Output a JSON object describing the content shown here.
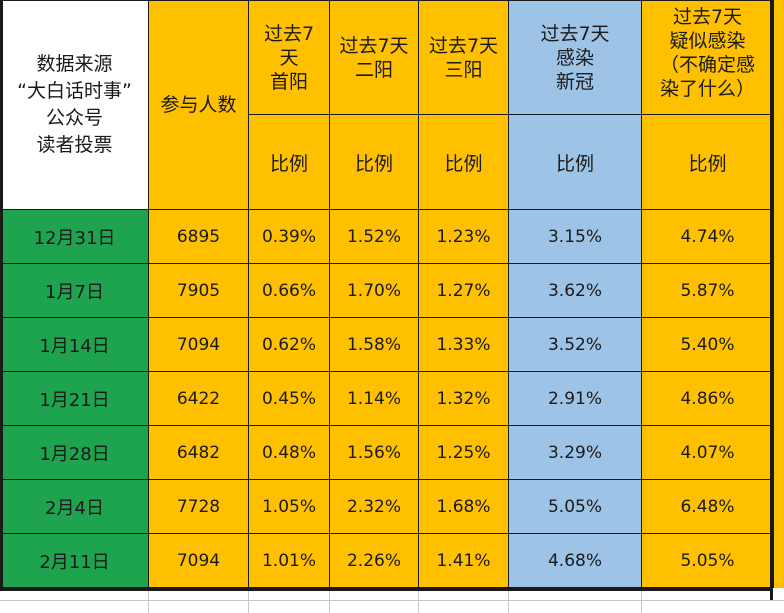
{
  "header": {
    "source_lines": [
      "数据来源",
      "“大白话时事”",
      "公众号",
      "读者投票"
    ],
    "participants": "参与人数",
    "col_first_pos": [
      "过去7",
      "天",
      "首阳"
    ],
    "col_second_pos": [
      "过去7天",
      "二阳"
    ],
    "col_third_pos": [
      "过去7天",
      "三阳"
    ],
    "col_infected": [
      "过去7天",
      "感染",
      "新冠"
    ],
    "col_suspected": [
      "过去7天",
      "疑似感染",
      "（不确定感",
      "染了什么）"
    ],
    "ratio_label": "比例"
  },
  "rows": [
    {
      "date": "12月31日",
      "participants": "6895",
      "first": "0.39%",
      "second": "1.52%",
      "third": "1.23%",
      "infected": "3.15%",
      "suspected": "4.74%"
    },
    {
      "date": "1月7日",
      "participants": "7905",
      "first": "0.66%",
      "second": "1.70%",
      "third": "1.27%",
      "infected": "3.62%",
      "suspected": "5.87%"
    },
    {
      "date": "1月14日",
      "participants": "7094",
      "first": "0.62%",
      "second": "1.58%",
      "third": "1.33%",
      "infected": "3.52%",
      "suspected": "5.40%"
    },
    {
      "date": "1月21日",
      "participants": "6422",
      "first": "0.45%",
      "second": "1.14%",
      "third": "1.32%",
      "infected": "2.91%",
      "suspected": "4.86%"
    },
    {
      "date": "1月28日",
      "participants": "6482",
      "first": "0.48%",
      "second": "1.56%",
      "third": "1.25%",
      "infected": "3.29%",
      "suspected": "4.07%"
    },
    {
      "date": "2月4日",
      "participants": "7728",
      "first": "1.05%",
      "second": "2.32%",
      "third": "1.68%",
      "infected": "5.05%",
      "suspected": "6.48%"
    },
    {
      "date": "2月11日",
      "participants": "7094",
      "first": "1.01%",
      "second": "2.26%",
      "third": "1.41%",
      "infected": "4.68%",
      "suspected": "5.05%"
    }
  ],
  "colors": {
    "orange": "#FFC000",
    "blue": "#9DC3E6",
    "green": "#1EA34E",
    "white": "#FFFFFF"
  }
}
